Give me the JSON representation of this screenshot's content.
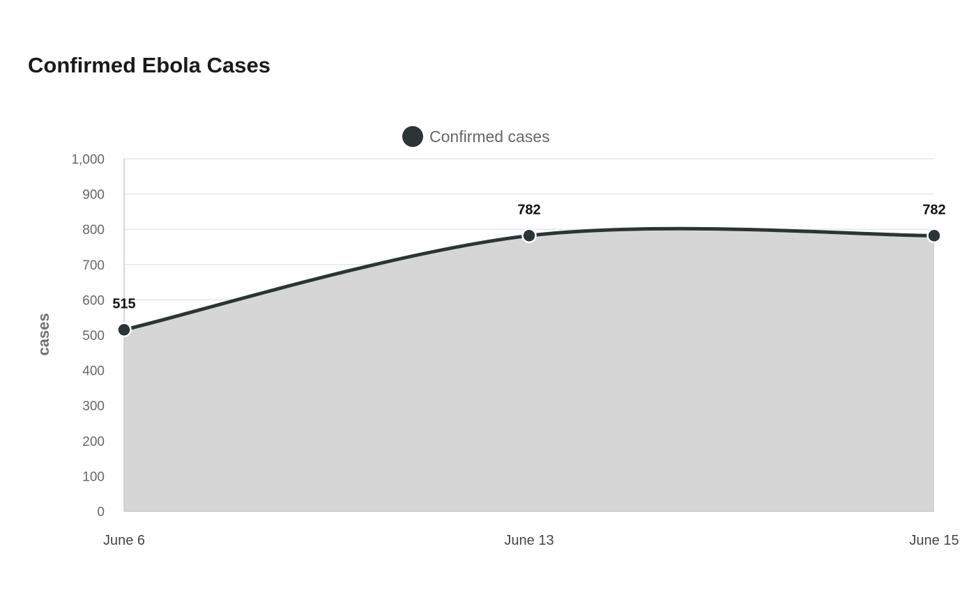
{
  "title": "Confirmed Ebola Cases",
  "colors": {
    "series": "#2d3436",
    "fill": "#d6d6d6",
    "grid": "#e6e6e6",
    "axis": "#cccccc"
  },
  "chart_data": {
    "type": "area",
    "title": "Confirmed Ebola Cases",
    "xlabel": "",
    "ylabel": "cases",
    "categories": [
      "June 6",
      "June 13",
      "June 15"
    ],
    "series": [
      {
        "name": "Confirmed cases",
        "values": [
          515,
          782,
          782
        ],
        "data_labels": [
          "515",
          "782",
          "782"
        ]
      }
    ],
    "ylim": [
      0,
      1000
    ],
    "yticks": [
      0,
      100,
      200,
      300,
      400,
      500,
      600,
      700,
      800,
      900,
      1000
    ],
    "ytick_labels": [
      "0",
      "100",
      "200",
      "300",
      "400",
      "500",
      "600",
      "700",
      "800",
      "900",
      "1,000"
    ],
    "grid": true,
    "legend": "top-center",
    "smooth": true
  }
}
